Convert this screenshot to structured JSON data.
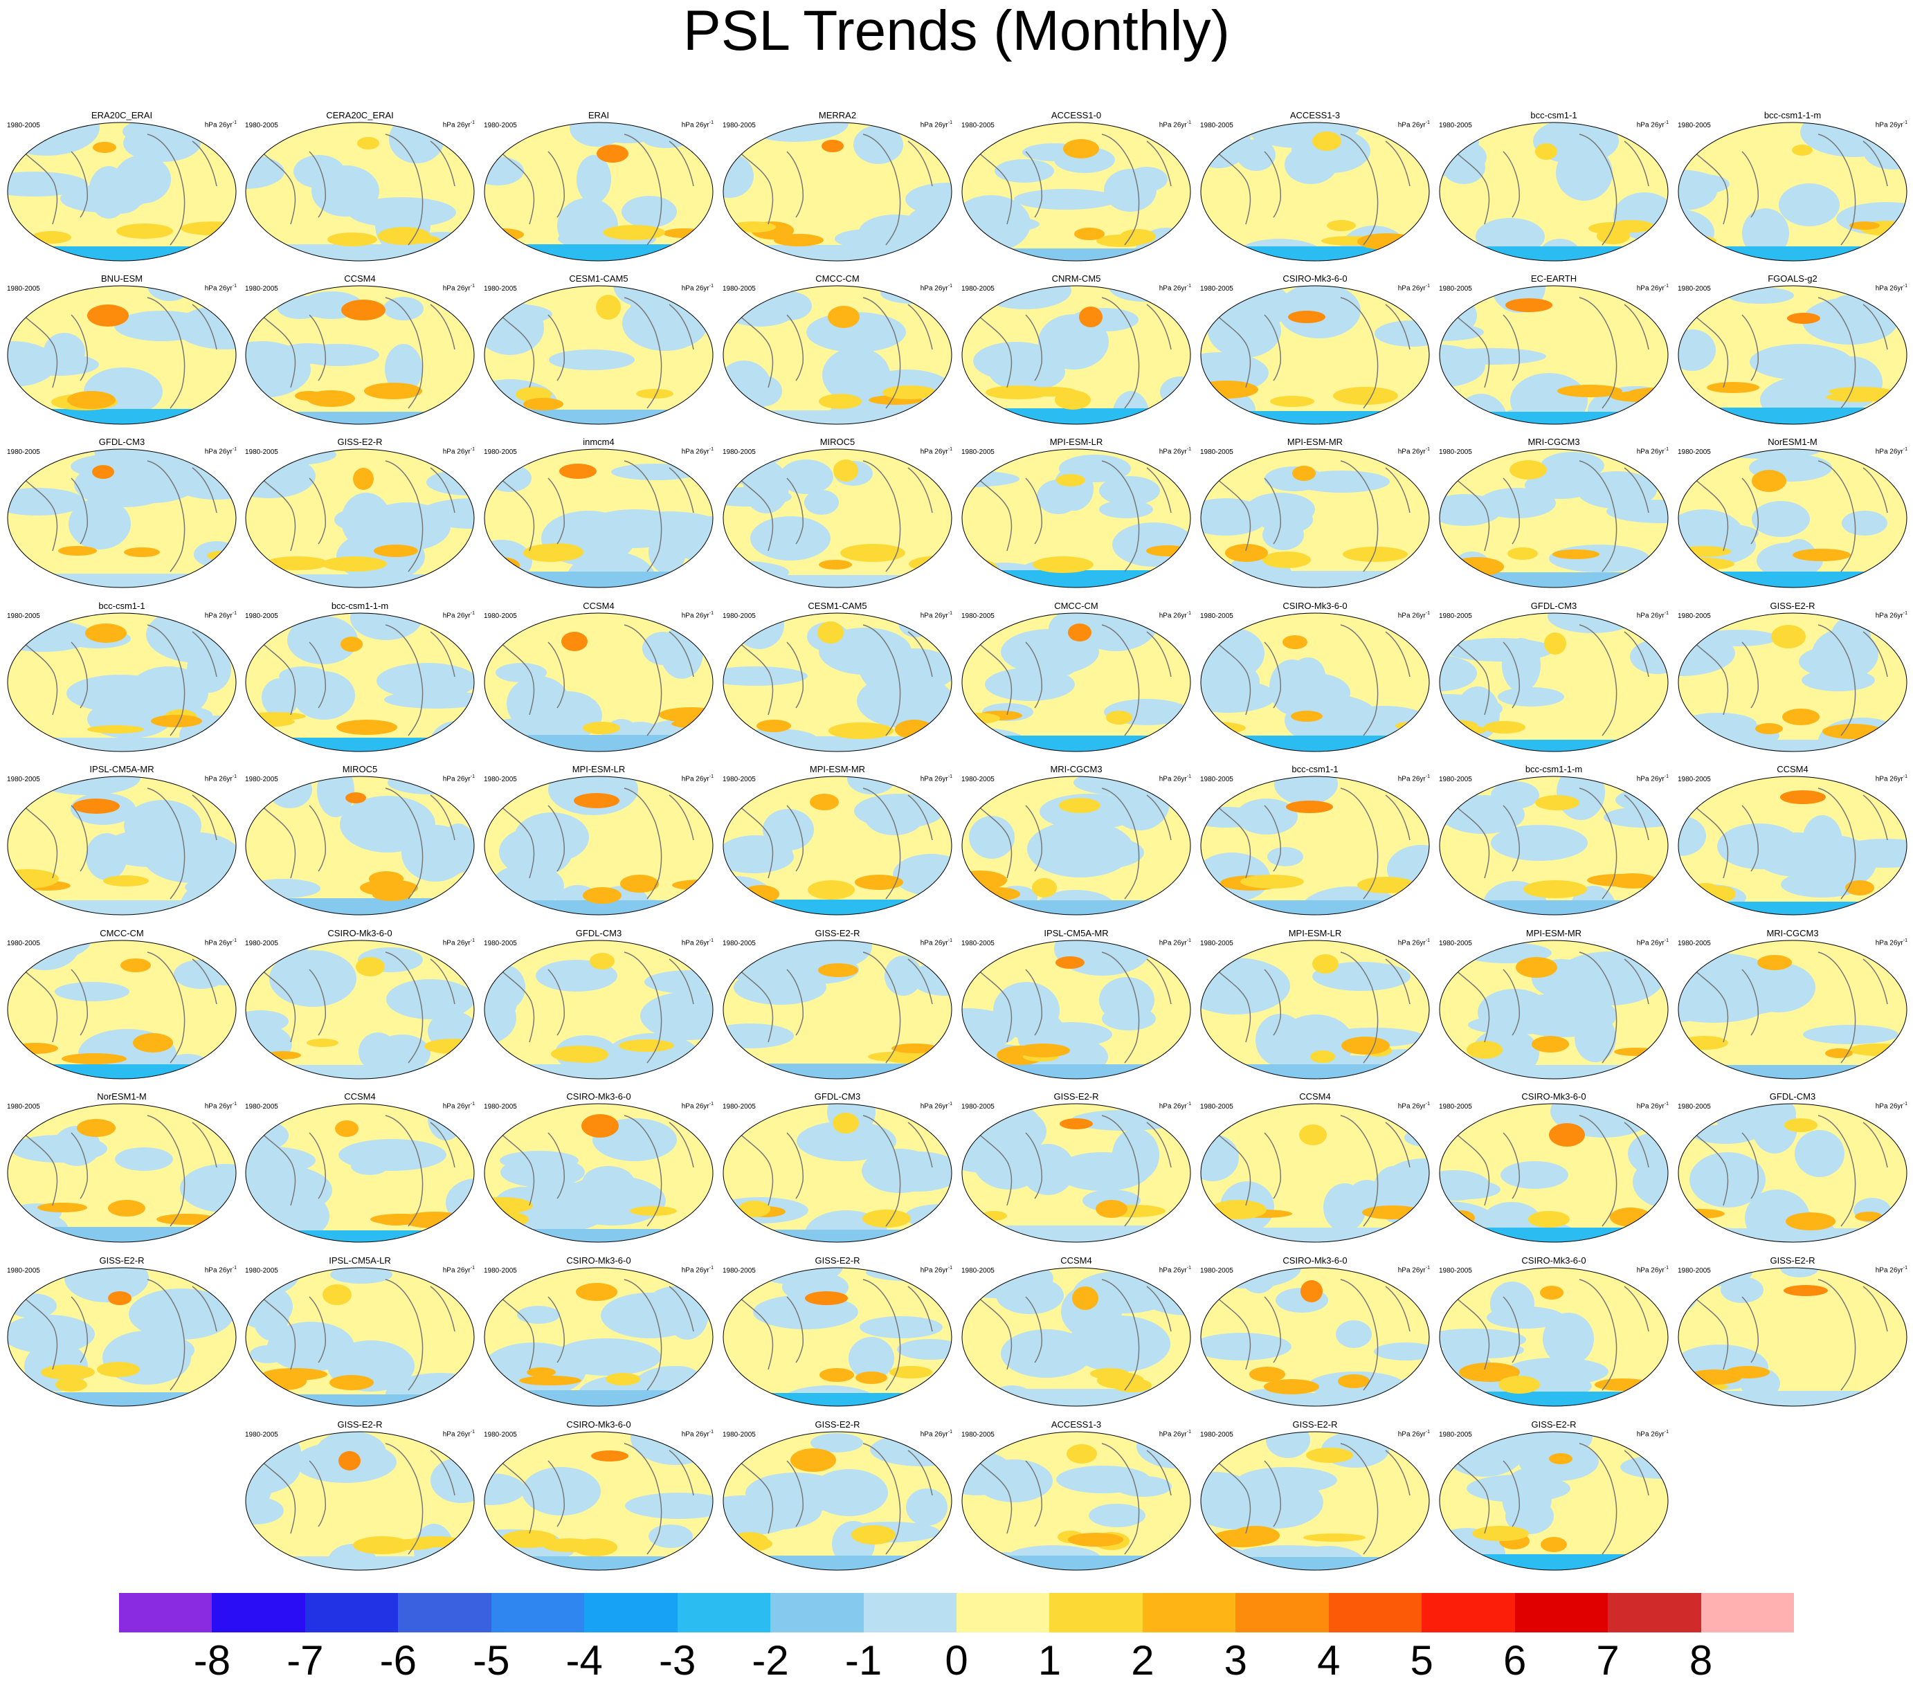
{
  "title": "PSL Trends (Monthly)",
  "panel_common": {
    "years": "1980-2005",
    "units": "hPa 26yr",
    "units_sup": "-1"
  },
  "panels": [
    [
      "ERA20C_ERAI",
      "CERA20C_ERAI",
      "ERAI",
      "MERRA2",
      "ACCESS1-0",
      "ACCESS1-3",
      "bcc-csm1-1",
      "bcc-csm1-1-m"
    ],
    [
      "BNU-ESM",
      "CCSM4",
      "CESM1-CAM5",
      "CMCC-CM",
      "CNRM-CM5",
      "CSIRO-Mk3-6-0",
      "EC-EARTH",
      "FGOALS-g2"
    ],
    [
      "GFDL-CM3",
      "GISS-E2-R",
      "inmcm4",
      "MIROC5",
      "MPI-ESM-LR",
      "MPI-ESM-MR",
      "MRI-CGCM3",
      "NorESM1-M"
    ],
    [
      "bcc-csm1-1",
      "bcc-csm1-1-m",
      "CCSM4",
      "CESM1-CAM5",
      "CMCC-CM",
      "CSIRO-Mk3-6-0",
      "GFDL-CM3",
      "GISS-E2-R"
    ],
    [
      "IPSL-CM5A-MR",
      "MIROC5",
      "MPI-ESM-LR",
      "MPI-ESM-MR",
      "MRI-CGCM3",
      "bcc-csm1-1",
      "bcc-csm1-1-m",
      "CCSM4"
    ],
    [
      "CMCC-CM",
      "CSIRO-Mk3-6-0",
      "GFDL-CM3",
      "GISS-E2-R",
      "IPSL-CM5A-MR",
      "MPI-ESM-LR",
      "MPI-ESM-MR",
      "MRI-CGCM3"
    ],
    [
      "NorESM1-M",
      "CCSM4",
      "CSIRO-Mk3-6-0",
      "GFDL-CM3",
      "GISS-E2-R",
      "CCSM4",
      "CSIRO-Mk3-6-0",
      "GFDL-CM3"
    ],
    [
      "GISS-E2-R",
      "IPSL-CM5A-LR",
      "CSIRO-Mk3-6-0",
      "GISS-E2-R",
      "CCSM4",
      "CSIRO-Mk3-6-0",
      "CSIRO-Mk3-6-0",
      "GISS-E2-R"
    ],
    [
      "GISS-E2-R",
      "CSIRO-Mk3-6-0",
      "GISS-E2-R",
      "ACCESS1-3",
      "GISS-E2-R",
      "GISS-E2-R"
    ]
  ],
  "colorbar": {
    "colors": [
      "#8a2be2",
      "#2a0cf5",
      "#2233e6",
      "#3a62e0",
      "#2f86f0",
      "#18a2f5",
      "#2bbdf2",
      "#86c9ee",
      "#b8e0f2",
      "#fff799",
      "#fdd935",
      "#fdb414",
      "#fd8c0c",
      "#fd5a08",
      "#fd1e0a",
      "#e00000",
      "#d02a2a",
      "#ffb0b0"
    ],
    "labels": [
      "-8",
      "-7",
      "-6",
      "-5",
      "-4",
      "-3",
      "-2",
      "-1",
      "0",
      "1",
      "2",
      "3",
      "4",
      "5",
      "6",
      "7",
      "8"
    ]
  }
}
